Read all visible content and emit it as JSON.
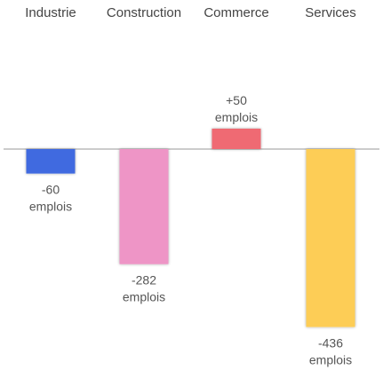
{
  "chart_data": {
    "type": "bar",
    "title": "",
    "xlabel": "",
    "ylabel": "",
    "categories": [
      "Industrie",
      "Construction",
      "Commerce",
      "Services"
    ],
    "values": [
      -60,
      -282,
      50,
      -436
    ],
    "value_labels": [
      [
        "-60",
        "emplois"
      ],
      [
        "-282",
        "emplois"
      ],
      [
        "+50",
        "emplois"
      ],
      [
        "-436",
        "emplois"
      ]
    ],
    "colors": [
      "#3f6be0",
      "#ee95c6",
      "#ef6b73",
      "#fdcd57"
    ],
    "zero_line_color": "#999999",
    "category_labels_position": "top",
    "grid": false,
    "legend": "none"
  }
}
